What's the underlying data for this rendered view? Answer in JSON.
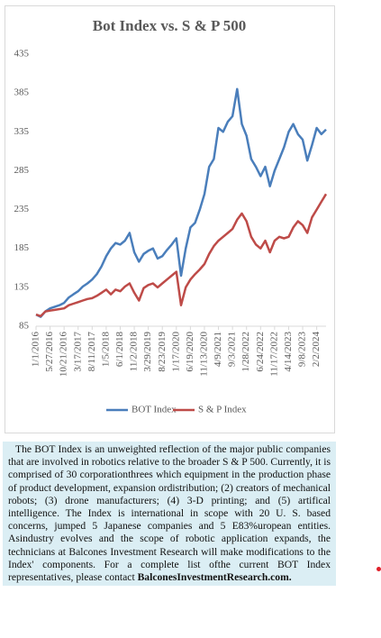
{
  "chart_data": {
    "type": "line",
    "title": "Bot Index vs. S & P 500",
    "categories": [
      "1/1/2016",
      null,
      null,
      "5/27/2016",
      null,
      null,
      "10/21/2016",
      null,
      null,
      "3/17/2017",
      null,
      null,
      "8/11/2017",
      null,
      null,
      "1/5/2018",
      null,
      null,
      "6/1/2018",
      null,
      null,
      "11/2/2018",
      null,
      null,
      "3/29/2019",
      null,
      null,
      "8/23/2019",
      null,
      null,
      "1/17/2020",
      null,
      null,
      "6/19/2020",
      null,
      null,
      "11/13/2020",
      null,
      null,
      "4/9/2021",
      null,
      null,
      "9/3/2021",
      null,
      null,
      "1/28/2022",
      null,
      null,
      "6/24/2022",
      null,
      null,
      "11/17/2022",
      null,
      null,
      "4/14/2023",
      null,
      null,
      "9/8/2023",
      null,
      null,
      "2/2/2024",
      null,
      null
    ],
    "series": [
      {
        "name": "BOT Index",
        "color": "#4a7ebb",
        "values": [
          100,
          97,
          104,
          108,
          110,
          112,
          115,
          122,
          126,
          130,
          136,
          140,
          145,
          152,
          162,
          175,
          185,
          192,
          190,
          195,
          205,
          180,
          168,
          178,
          182,
          185,
          172,
          175,
          183,
          190,
          198,
          150,
          185,
          212,
          218,
          235,
          255,
          290,
          300,
          340,
          335,
          348,
          355,
          390,
          345,
          330,
          300,
          290,
          278,
          290,
          265,
          285,
          300,
          315,
          335,
          345,
          332,
          325,
          298,
          318,
          340,
          332,
          338
        ]
      },
      {
        "name": "S & P Index",
        "color": "#be4b48",
        "values": [
          100,
          98,
          104,
          105,
          106,
          107,
          108,
          112,
          114,
          116,
          118,
          120,
          121,
          124,
          128,
          132,
          126,
          132,
          130,
          136,
          140,
          128,
          118,
          134,
          138,
          140,
          135,
          140,
          145,
          150,
          155,
          112,
          135,
          145,
          152,
          158,
          165,
          178,
          188,
          195,
          200,
          205,
          210,
          222,
          230,
          220,
          200,
          190,
          185,
          195,
          180,
          195,
          200,
          198,
          200,
          212,
          220,
          215,
          205,
          225,
          235,
          245,
          255
        ]
      }
    ],
    "ylim": [
      85,
      435
    ],
    "yticks": [
      85,
      135,
      185,
      235,
      285,
      335,
      385,
      435
    ],
    "grid": false,
    "legend": "bottom"
  },
  "text_box": {
    "paragraph": "The BOT Index is an unweighted reflection of the major public companies that are involved in robotics relative to the broader S & P 500. Currently, it is comprised of 30 corporationthrees which equipment in the production phase of product development, expansion ordistribution; (2) creators of mechanical robots; (3) drone manufacturers; (4) 3-D printing; and (5) artifical intelligence. The Index is international in scope with 20 U. S. based concerns, jumped 5 Japanese companies and 5 E83%uropean entities. Asindustry evolves and the scope of robotic application expands, the technicians at Balcones Investment Research will make modifications to the Index' components. For a  complete list ofthe current BOT Index representatives, please contact",
    "link": "BalconesInvestmentResearch.com."
  }
}
